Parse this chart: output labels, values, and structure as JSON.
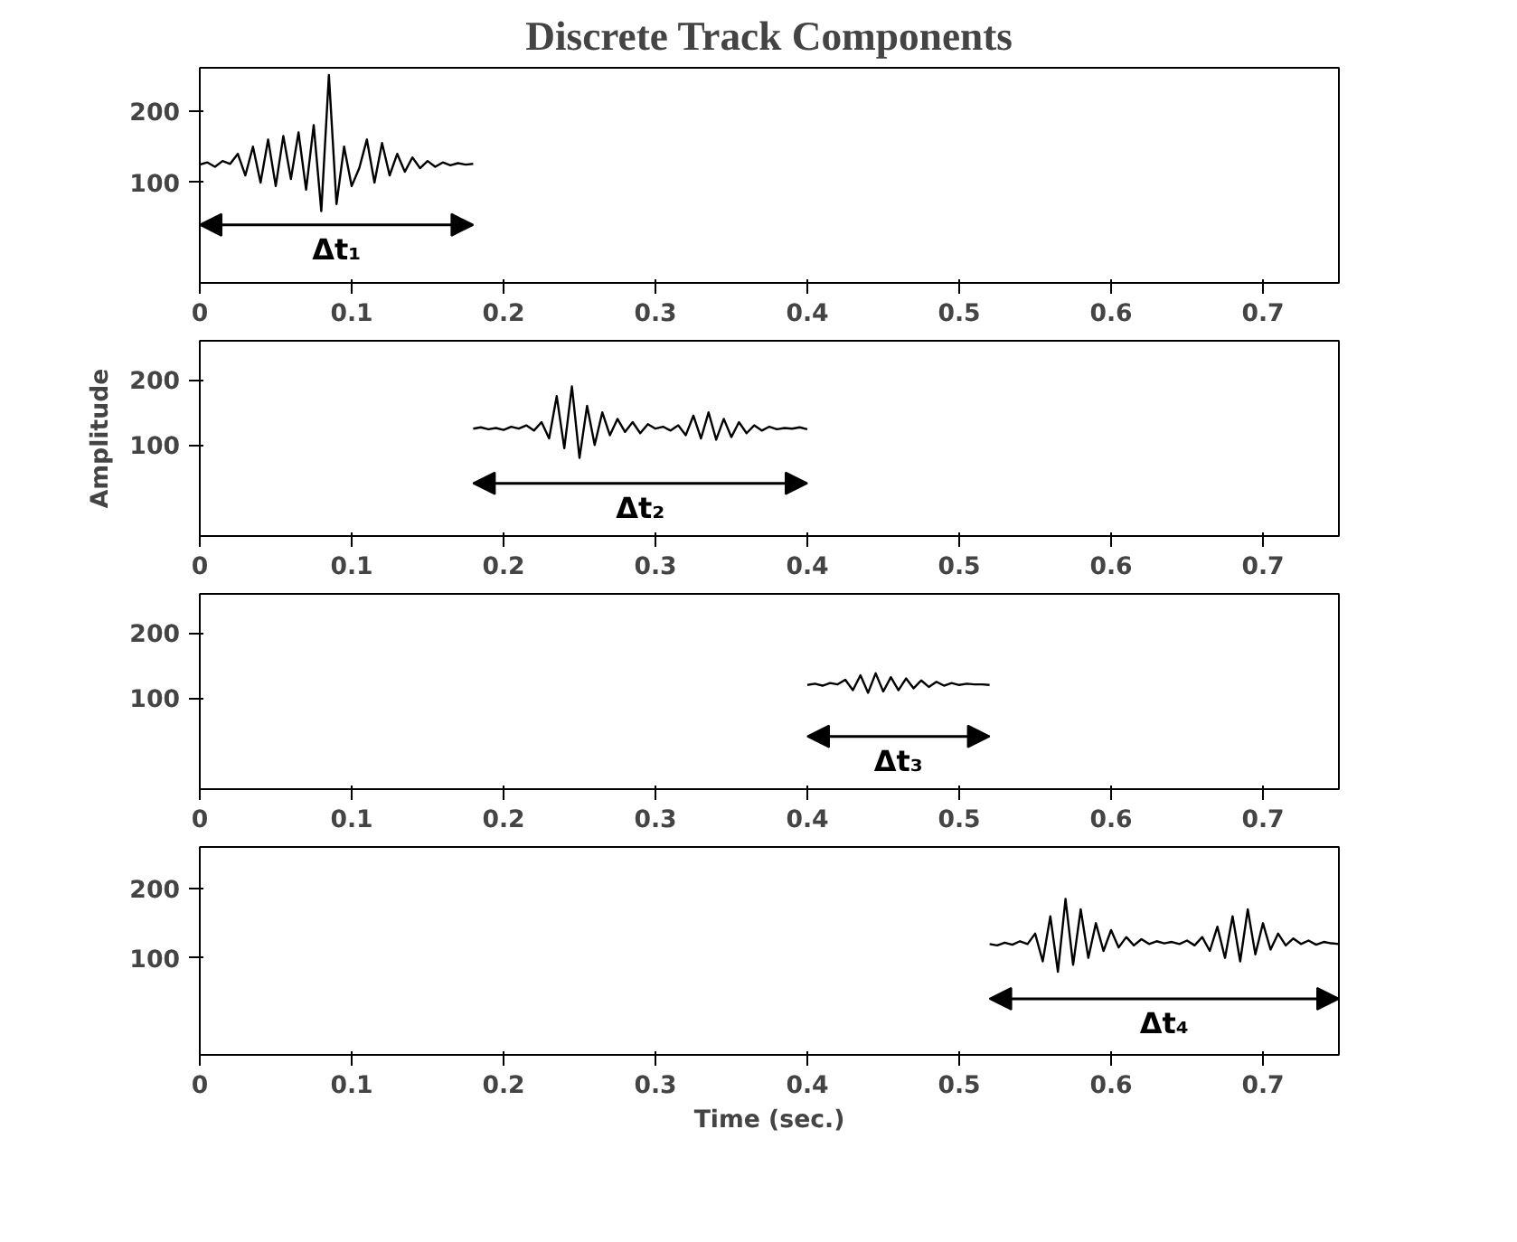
{
  "chart_data": [
    {
      "type": "line",
      "title": "Discrete Track Components",
      "xlim": [
        0,
        0.75
      ],
      "xticks": [
        0,
        0.1,
        0.2,
        0.3,
        0.4,
        0.5,
        0.6,
        0.7
      ],
      "ylim": [
        -40,
        260
      ],
      "yticks": [
        100,
        200
      ],
      "grid": false,
      "series": [
        {
          "color": "#000000",
          "x": [
            0,
            0.005,
            0.01,
            0.015,
            0.02,
            0.025,
            0.03,
            0.035,
            0.04,
            0.045,
            0.05,
            0.055,
            0.06,
            0.065,
            0.07,
            0.075,
            0.08,
            0.085,
            0.09,
            0.095,
            0.1,
            0.105,
            0.11,
            0.115,
            0.12,
            0.125,
            0.13,
            0.135,
            0.14,
            0.145,
            0.15,
            0.155,
            0.16,
            0.165,
            0.17,
            0.175,
            0.18
          ],
          "values": [
            125,
            128,
            122,
            130,
            126,
            140,
            110,
            150,
            100,
            160,
            95,
            165,
            105,
            170,
            90,
            180,
            60,
            250,
            70,
            150,
            95,
            120,
            160,
            100,
            155,
            110,
            140,
            115,
            135,
            120,
            130,
            122,
            128,
            124,
            127,
            125,
            126
          ]
        }
      ],
      "annotations": [
        "Δt₁"
      ]
    },
    {
      "type": "line",
      "ylabel": "Amplitude",
      "xlim": [
        0,
        0.75
      ],
      "xticks": [
        0,
        0.1,
        0.2,
        0.3,
        0.4,
        0.5,
        0.6,
        0.7
      ],
      "ylim": [
        -40,
        260
      ],
      "yticks": [
        100,
        200
      ],
      "grid": false,
      "series": [
        {
          "color": "#000000",
          "x": [
            0.18,
            0.185,
            0.19,
            0.195,
            0.2,
            0.205,
            0.21,
            0.215,
            0.22,
            0.225,
            0.23,
            0.235,
            0.24,
            0.245,
            0.25,
            0.255,
            0.26,
            0.265,
            0.27,
            0.275,
            0.28,
            0.285,
            0.29,
            0.295,
            0.3,
            0.305,
            0.31,
            0.315,
            0.32,
            0.325,
            0.33,
            0.335,
            0.34,
            0.345,
            0.35,
            0.355,
            0.36,
            0.365,
            0.37,
            0.375,
            0.38,
            0.385,
            0.39,
            0.395,
            0.4
          ],
          "values": [
            125,
            127,
            124,
            126,
            123,
            128,
            125,
            130,
            122,
            135,
            110,
            175,
            95,
            190,
            80,
            160,
            100,
            150,
            115,
            140,
            120,
            135,
            118,
            132,
            125,
            128,
            122,
            130,
            115,
            145,
            110,
            150,
            108,
            140,
            112,
            135,
            118,
            130,
            122,
            128,
            124,
            126,
            125,
            127,
            124
          ]
        }
      ],
      "annotations": [
        "Δt₂"
      ]
    },
    {
      "type": "line",
      "xlim": [
        0,
        0.75
      ],
      "xticks": [
        0,
        0.1,
        0.2,
        0.3,
        0.4,
        0.5,
        0.6,
        0.7
      ],
      "ylim": [
        -40,
        260
      ],
      "yticks": [
        100,
        200
      ],
      "grid": false,
      "series": [
        {
          "color": "#000000",
          "x": [
            0.4,
            0.405,
            0.41,
            0.415,
            0.42,
            0.425,
            0.43,
            0.435,
            0.44,
            0.445,
            0.45,
            0.455,
            0.46,
            0.465,
            0.47,
            0.475,
            0.48,
            0.485,
            0.49,
            0.495,
            0.5,
            0.505,
            0.51,
            0.515,
            0.52
          ],
          "values": [
            120,
            122,
            119,
            123,
            121,
            128,
            112,
            135,
            108,
            138,
            110,
            132,
            112,
            130,
            115,
            127,
            117,
            125,
            119,
            123,
            120,
            122,
            121,
            121,
            120
          ]
        }
      ],
      "annotations": [
        "Δt₃"
      ]
    },
    {
      "type": "line",
      "xlabel": "Time (sec.)",
      "xlim": [
        0,
        0.75
      ],
      "xticks": [
        0,
        0.1,
        0.2,
        0.3,
        0.4,
        0.5,
        0.6,
        0.7
      ],
      "ylim": [
        -40,
        260
      ],
      "yticks": [
        100,
        200
      ],
      "grid": false,
      "series": [
        {
          "color": "#000000",
          "x": [
            0.52,
            0.525,
            0.53,
            0.535,
            0.54,
            0.545,
            0.55,
            0.555,
            0.56,
            0.565,
            0.57,
            0.575,
            0.58,
            0.585,
            0.59,
            0.595,
            0.6,
            0.605,
            0.61,
            0.615,
            0.62,
            0.625,
            0.63,
            0.635,
            0.64,
            0.645,
            0.65,
            0.655,
            0.66,
            0.665,
            0.67,
            0.675,
            0.68,
            0.685,
            0.69,
            0.695,
            0.7,
            0.705,
            0.71,
            0.715,
            0.72,
            0.725,
            0.73,
            0.735,
            0.74,
            0.745,
            0.75
          ],
          "values": [
            120,
            118,
            122,
            119,
            124,
            120,
            135,
            95,
            160,
            80,
            185,
            90,
            170,
            100,
            150,
            110,
            140,
            115,
            130,
            118,
            127,
            120,
            124,
            121,
            123,
            120,
            125,
            118,
            130,
            110,
            145,
            100,
            160,
            95,
            170,
            105,
            150,
            112,
            135,
            118,
            128,
            120,
            125,
            119,
            123,
            121,
            120
          ]
        }
      ],
      "annotations": [
        "Δt₄"
      ]
    }
  ]
}
